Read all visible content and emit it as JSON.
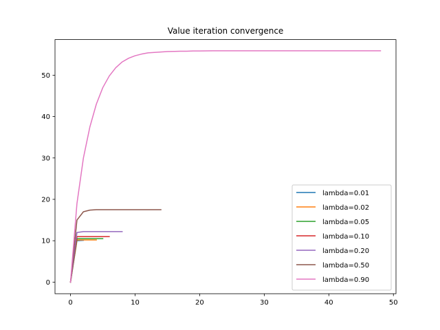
{
  "chart_data": {
    "type": "line",
    "title": "Value iteration convergence",
    "xlabel": "",
    "ylabel": "",
    "xlim": [
      -2.4,
      50.4
    ],
    "ylim": [
      -2.8,
      58.6
    ],
    "xticks": [
      0,
      10,
      20,
      30,
      40,
      50
    ],
    "yticks": [
      0,
      10,
      20,
      30,
      40,
      50
    ],
    "grid": false,
    "legend_position": "lower-right",
    "series": [
      {
        "name": "lambda=0.01",
        "color": "#1f77b4",
        "x": [
          0,
          1,
          2
        ],
        "y": [
          0,
          10.0,
          10.1
        ]
      },
      {
        "name": "lambda=0.02",
        "color": "#ff7f0e",
        "x": [
          0,
          1,
          2,
          3,
          4
        ],
        "y": [
          0,
          10.2,
          10.2,
          10.2,
          10.2
        ]
      },
      {
        "name": "lambda=0.05",
        "color": "#2ca02c",
        "x": [
          0,
          1,
          2,
          3,
          4,
          5
        ],
        "y": [
          0,
          10.5,
          10.5,
          10.5,
          10.5,
          10.5
        ]
      },
      {
        "name": "lambda=0.10",
        "color": "#d62728",
        "x": [
          0,
          1,
          2,
          3,
          4,
          5,
          6
        ],
        "y": [
          0,
          11.0,
          11.0,
          11.0,
          11.0,
          11.0,
          11.0
        ]
      },
      {
        "name": "lambda=0.20",
        "color": "#9467bd",
        "x": [
          0,
          1,
          2,
          3,
          4,
          5,
          6,
          7,
          8
        ],
        "y": [
          0,
          12.0,
          12.2,
          12.2,
          12.2,
          12.2,
          12.2,
          12.2,
          12.2
        ]
      },
      {
        "name": "lambda=0.50",
        "color": "#8c564b",
        "x": [
          0,
          1,
          2,
          3,
          4,
          5,
          6,
          7,
          8,
          9,
          10,
          11,
          12,
          13,
          14
        ],
        "y": [
          0,
          15.0,
          17.0,
          17.4,
          17.5,
          17.5,
          17.5,
          17.5,
          17.5,
          17.5,
          17.5,
          17.5,
          17.5,
          17.5,
          17.5
        ]
      },
      {
        "name": "lambda=0.90",
        "color": "#e377c2",
        "x": [
          0,
          1,
          2,
          3,
          4,
          5,
          6,
          7,
          8,
          9,
          10,
          11,
          12,
          13,
          14,
          15,
          16,
          17,
          18,
          19,
          20,
          22,
          24,
          26,
          28,
          30,
          35,
          40,
          45,
          48
        ],
        "y": [
          0,
          19.0,
          30.0,
          37.5,
          43.0,
          47.0,
          49.8,
          51.8,
          53.2,
          54.1,
          54.7,
          55.1,
          55.4,
          55.5,
          55.6,
          55.7,
          55.75,
          55.8,
          55.8,
          55.85,
          55.85,
          55.9,
          55.9,
          55.9,
          55.9,
          55.9,
          55.9,
          55.9,
          55.9,
          55.9
        ]
      }
    ]
  }
}
